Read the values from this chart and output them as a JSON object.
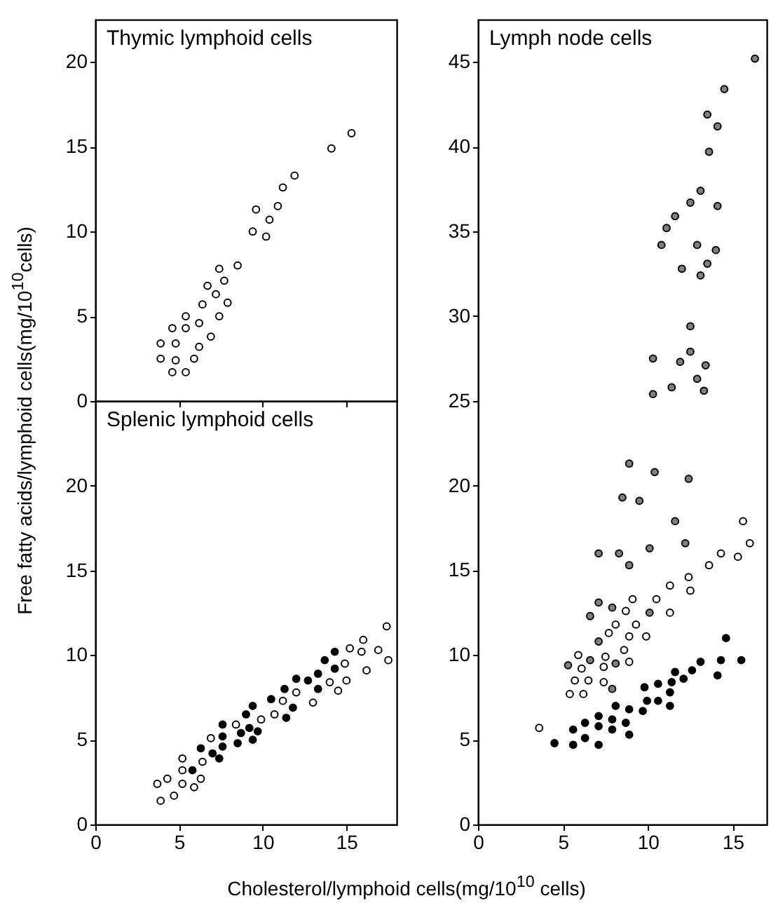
{
  "chart_data": [
    {
      "type": "scatter",
      "title": "Thymic lymphoid cells",
      "ylabel": "Free fatty acids/lymphoid cells(mg/10$^{10}$cells)",
      "xlim": [
        0,
        18
      ],
      "ylim": [
        0,
        22.5
      ],
      "xticks": [
        0,
        5,
        10,
        15
      ],
      "yticks": [
        0,
        5,
        10,
        15,
        20
      ],
      "tick_labels": "y",
      "marker": "circle",
      "series": [
        {
          "color": "#ffffff",
          "x": [
            3.9,
            3.9,
            4.6,
            4.8,
            4.6,
            4.8,
            5.4,
            5.4,
            5.4,
            5.9,
            6.2,
            6.2,
            6.4,
            6.7,
            6.9,
            7.2,
            7.4,
            7.4,
            7.7,
            7.9,
            8.5,
            9.4,
            9.6,
            10.2,
            10.4,
            10.9,
            11.2,
            11.9,
            14.1,
            15.3
          ],
          "values": [
            3.4,
            2.5,
            4.3,
            3.4,
            1.7,
            2.4,
            5.0,
            4.3,
            1.7,
            2.5,
            4.6,
            3.2,
            5.7,
            6.8,
            3.8,
            6.3,
            7.8,
            5.0,
            7.1,
            5.8,
            8.0,
            10.0,
            11.3,
            9.7,
            10.7,
            11.5,
            12.6,
            13.3,
            14.9,
            15.8
          ]
        }
      ]
    },
    {
      "type": "scatter",
      "title": "Splenic lymphoid cells",
      "xlabel": "Cholesterol/lymphoid cells(mg/10$^{10}$ cells)",
      "xlim": [
        0,
        18
      ],
      "ylim": [
        0,
        25
      ],
      "xticks": [
        0,
        5,
        10,
        15
      ],
      "yticks": [
        0,
        5,
        10,
        15,
        20
      ],
      "marker": "circle",
      "series": [
        {
          "color": "#000000",
          "x": [
            5.8,
            6.3,
            7.0,
            7.4,
            7.6,
            7.6,
            7.6,
            8.5,
            8.7,
            9.0,
            9.2,
            9.4,
            9.4,
            9.7,
            10.5,
            11.3,
            11.4,
            11.8,
            12.0,
            12.7,
            13.3,
            13.3,
            13.7,
            14.3,
            14.3
          ],
          "values": [
            3.2,
            4.5,
            4.2,
            3.9,
            5.9,
            5.2,
            4.6,
            4.8,
            5.4,
            6.5,
            5.7,
            7.0,
            5.0,
            5.5,
            7.4,
            8.0,
            6.3,
            6.9,
            8.6,
            8.5,
            8.9,
            8.0,
            9.7,
            9.2,
            10.2
          ]
        },
        {
          "color": "#ffffff",
          "x": [
            3.7,
            3.9,
            4.3,
            4.7,
            5.2,
            5.2,
            5.2,
            5.9,
            6.3,
            6.4,
            6.9,
            8.4,
            9.9,
            10.7,
            11.2,
            12.0,
            13.0,
            14.0,
            14.5,
            14.9,
            15.0,
            15.2,
            15.9,
            16.0,
            16.2,
            16.9,
            17.4,
            17.5
          ],
          "values": [
            2.4,
            1.4,
            2.7,
            1.7,
            3.9,
            3.2,
            2.4,
            2.2,
            2.7,
            3.7,
            5.1,
            5.9,
            6.2,
            6.5,
            7.3,
            7.8,
            7.2,
            8.4,
            7.9,
            9.5,
            8.5,
            10.4,
            10.2,
            10.9,
            9.1,
            10.3,
            11.7,
            9.7
          ]
        }
      ]
    },
    {
      "type": "scatter",
      "title": "Lymph node cells",
      "xlim": [
        0,
        17
      ],
      "ylim": [
        0,
        47.5
      ],
      "xticks": [
        0,
        5,
        10,
        15
      ],
      "yticks": [
        0,
        5,
        10,
        15,
        20,
        25,
        30,
        35,
        40,
        45
      ],
      "marker": "circle",
      "series": [
        {
          "color": "#808080",
          "x": [
            16.3,
            14.5,
            13.5,
            14.1,
            13.6,
            13.1,
            12.5,
            14.1,
            11.6,
            11.1,
            10.8,
            12.9,
            14.0,
            13.5,
            12.0,
            13.1,
            12.5,
            10.3,
            11.9,
            12.5,
            13.4,
            12.9,
            11.4,
            10.3,
            13.3,
            8.9,
            10.4,
            12.4,
            8.5,
            9.5,
            11.6,
            7.1,
            8.3,
            10.1,
            12.2,
            8.9,
            7.1,
            7.9,
            6.6,
            10.1,
            7.1,
            6.6,
            5.3,
            8.1,
            7.9
          ],
          "values": [
            45.2,
            43.4,
            41.9,
            41.2,
            39.7,
            37.4,
            36.7,
            36.5,
            35.9,
            35.2,
            34.2,
            34.2,
            33.9,
            33.1,
            32.8,
            32.4,
            29.4,
            27.5,
            27.3,
            27.9,
            27.1,
            26.3,
            25.8,
            25.4,
            25.6,
            21.3,
            20.8,
            20.4,
            19.3,
            19.1,
            17.9,
            16.0,
            16.0,
            16.3,
            16.6,
            15.3,
            13.1,
            12.8,
            12.3,
            12.5,
            10.8,
            9.7,
            9.4,
            9.5,
            8.0
          ]
        },
        {
          "color": "#ffffff",
          "x": [
            3.6,
            5.4,
            5.7,
            5.9,
            6.1,
            6.2,
            6.5,
            7.4,
            7.5,
            7.7,
            7.4,
            8.1,
            8.7,
            8.6,
            8.9,
            8.9,
            9.1,
            9.3,
            9.9,
            10.5,
            11.3,
            11.3,
            12.4,
            12.5,
            13.6,
            14.3,
            15.3,
            15.6,
            16.0
          ],
          "values": [
            5.7,
            7.7,
            8.5,
            10.0,
            9.2,
            7.7,
            8.5,
            9.3,
            9.9,
            11.3,
            8.4,
            11.8,
            12.6,
            10.3,
            11.1,
            9.6,
            13.3,
            11.8,
            11.1,
            13.3,
            14.1,
            12.5,
            14.6,
            13.8,
            15.3,
            16.0,
            15.8,
            17.9,
            16.6
          ]
        },
        {
          "color": "#000000",
          "x": [
            4.5,
            5.6,
            5.6,
            6.3,
            6.3,
            7.1,
            7.1,
            7.1,
            7.9,
            7.9,
            8.1,
            8.7,
            8.9,
            8.9,
            9.7,
            9.8,
            9.95,
            10.6,
            10.6,
            11.3,
            11.3,
            11.4,
            11.6,
            12.1,
            12.6,
            13.1,
            14.1,
            14.3,
            14.6,
            15.5
          ],
          "values": [
            4.8,
            5.6,
            4.7,
            6.0,
            5.1,
            6.4,
            5.8,
            4.7,
            6.2,
            5.6,
            7.0,
            6.0,
            6.8,
            5.3,
            6.7,
            8.1,
            7.3,
            8.3,
            7.3,
            7.8,
            7.0,
            8.4,
            9.0,
            8.6,
            9.1,
            9.6,
            8.8,
            9.7,
            11.0,
            9.7
          ]
        }
      ]
    }
  ]
}
